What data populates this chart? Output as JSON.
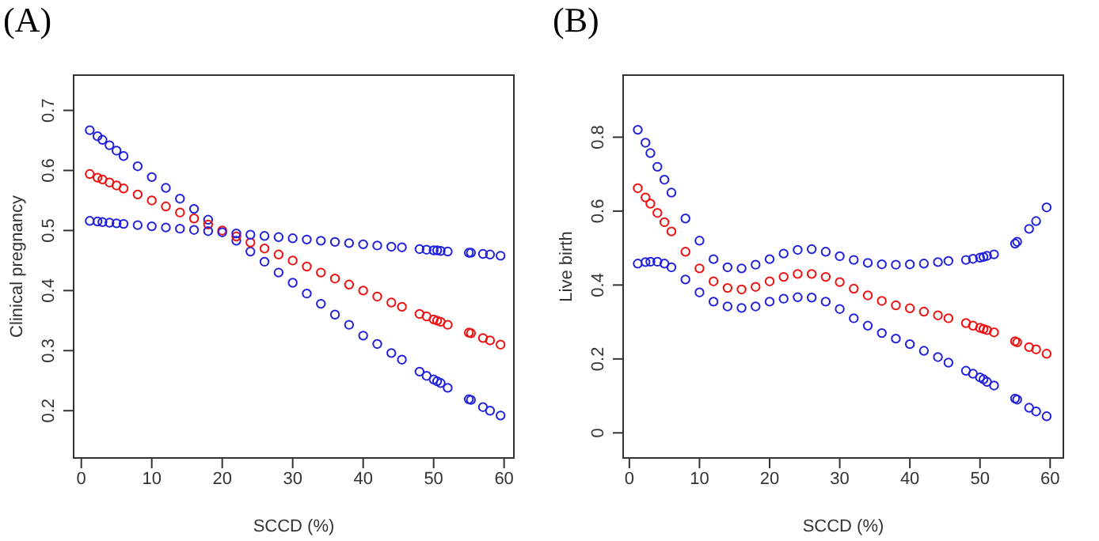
{
  "chart_data": [
    {
      "type": "scatter",
      "title": "(A)",
      "xlabel": "SCCD (%)",
      "ylabel": "Clinical pregnancy",
      "marker": "circle",
      "grid": false,
      "legend": false,
      "x": [
        1.2,
        2.3,
        3,
        4,
        5,
        6,
        8,
        10,
        12,
        14,
        16,
        18,
        20,
        22,
        24,
        26,
        28,
        30,
        32,
        34,
        36,
        38,
        40,
        42,
        44,
        45.5,
        48,
        49,
        50,
        50.5,
        51,
        52,
        55,
        55.3,
        57,
        58,
        59.5
      ],
      "xlim": [
        -1.2,
        61.5
      ],
      "xticks": [
        0,
        10,
        20,
        30,
        40,
        50,
        60
      ],
      "ylim": [
        0.12,
        0.76
      ],
      "yticks": [
        0.2,
        0.3,
        0.4,
        0.5,
        0.6,
        0.7
      ],
      "series": [
        {
          "color": "#2222dd",
          "values": [
            0.667,
            0.657,
            0.651,
            0.642,
            0.633,
            0.624,
            0.607,
            0.589,
            0.571,
            0.553,
            0.536,
            0.518,
            null,
            0.483,
            0.465,
            0.448,
            0.43,
            0.413,
            0.395,
            0.378,
            0.36,
            0.343,
            0.325,
            0.311,
            0.296,
            0.285,
            0.265,
            0.258,
            0.252,
            0.249,
            0.246,
            0.238,
            0.219,
            0.218,
            0.206,
            0.2,
            0.192
          ]
        },
        {
          "color": "#ee1111",
          "values": [
            0.594,
            0.588,
            0.585,
            0.58,
            0.575,
            0.57,
            0.56,
            0.55,
            0.54,
            0.53,
            0.52,
            0.51,
            0.5,
            0.49,
            0.48,
            0.47,
            0.46,
            0.45,
            0.44,
            0.43,
            0.42,
            0.41,
            0.4,
            0.39,
            0.38,
            0.373,
            0.361,
            0.357,
            0.352,
            0.35,
            0.348,
            0.343,
            0.33,
            0.329,
            0.321,
            0.317,
            0.31
          ]
        },
        {
          "color": "#2222dd",
          "values": [
            0.516,
            0.515,
            0.514,
            0.513,
            0.512,
            0.511,
            0.509,
            0.507,
            0.505,
            0.503,
            0.501,
            0.499,
            0.497,
            0.495,
            0.493,
            0.491,
            0.489,
            0.487,
            0.485,
            0.483,
            0.481,
            0.479,
            0.477,
            0.475,
            0.473,
            0.472,
            0.469,
            0.468,
            0.467,
            0.467,
            0.466,
            0.465,
            0.463,
            0.463,
            0.461,
            0.46,
            0.458
          ]
        }
      ]
    },
    {
      "type": "scatter",
      "title": "(B)",
      "xlabel": "SCCD (%)",
      "ylabel": "Live birth",
      "marker": "circle",
      "grid": false,
      "legend": false,
      "x": [
        1.2,
        2.3,
        3,
        4,
        5,
        6,
        8,
        10,
        12,
        14,
        16,
        18,
        20,
        22,
        24,
        26,
        28,
        30,
        32,
        34,
        36,
        38,
        40,
        42,
        44,
        45.5,
        48,
        49,
        50,
        50.5,
        51,
        52,
        55,
        55.3,
        57,
        58,
        59.5
      ],
      "xlim": [
        -1,
        62
      ],
      "xticks": [
        0,
        10,
        20,
        30,
        40,
        50,
        60
      ],
      "ylim": [
        -0.07,
        0.97
      ],
      "yticks": [
        0,
        0.2,
        0.4,
        0.6,
        0.8
      ],
      "series": [
        {
          "color": "#2222dd",
          "values": [
            0.82,
            0.785,
            0.757,
            0.72,
            0.685,
            0.65,
            0.58,
            0.52,
            0.47,
            0.448,
            0.445,
            0.455,
            0.47,
            0.485,
            0.495,
            0.497,
            0.49,
            0.478,
            0.468,
            0.46,
            0.456,
            0.455,
            0.456,
            0.458,
            0.462,
            0.465,
            0.468,
            0.471,
            0.474,
            0.476,
            0.479,
            0.483,
            0.512,
            0.517,
            0.552,
            0.573,
            0.61
          ]
        },
        {
          "color": "#ee1111",
          "values": [
            0.662,
            0.637,
            0.62,
            0.595,
            0.57,
            0.545,
            0.49,
            0.445,
            0.41,
            0.392,
            0.388,
            0.395,
            0.41,
            0.422,
            0.43,
            0.43,
            0.422,
            0.408,
            0.39,
            0.372,
            0.357,
            0.345,
            0.337,
            0.328,
            0.318,
            0.31,
            0.297,
            0.29,
            0.284,
            0.281,
            0.278,
            0.272,
            0.248,
            0.245,
            0.232,
            0.226,
            0.214
          ]
        },
        {
          "color": "#2222dd",
          "values": [
            0.458,
            0.462,
            0.463,
            0.463,
            0.458,
            0.448,
            0.415,
            0.38,
            0.355,
            0.342,
            0.338,
            0.342,
            0.355,
            0.363,
            0.367,
            0.366,
            0.355,
            0.335,
            0.31,
            0.29,
            0.27,
            0.255,
            0.24,
            0.222,
            0.205,
            0.19,
            0.168,
            0.16,
            0.15,
            0.145,
            0.138,
            0.128,
            0.093,
            0.09,
            0.068,
            0.058,
            0.045
          ]
        }
      ]
    }
  ]
}
